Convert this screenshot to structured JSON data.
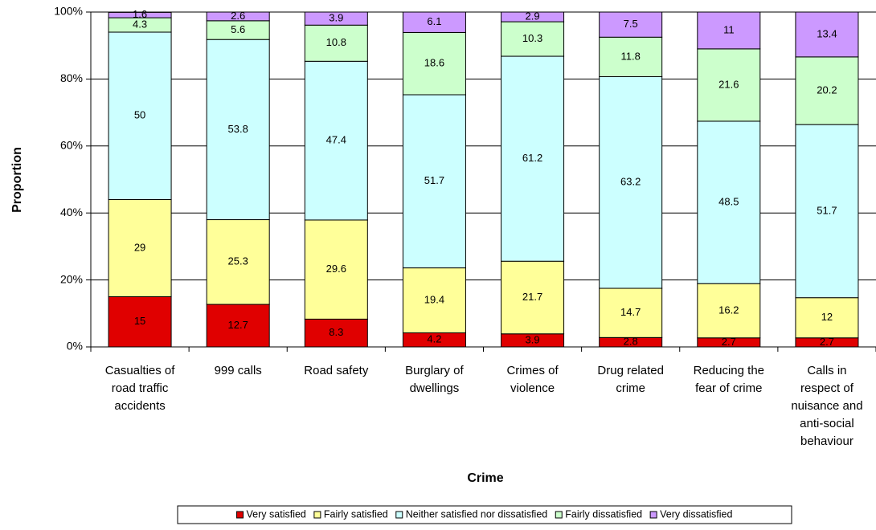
{
  "chart_data": {
    "type": "bar",
    "stacked": true,
    "percent_stacked": true,
    "xlabel": "Crime",
    "ylabel": "Proportion",
    "y_ticks": [
      "0%",
      "20%",
      "40%",
      "60%",
      "80%",
      "100%"
    ],
    "ylim": [
      0,
      100
    ],
    "grid": true,
    "legend_position": "bottom",
    "categories": [
      [
        "Casualties of",
        "road traffic",
        "accidents"
      ],
      [
        "999 calls"
      ],
      [
        "Road safety"
      ],
      [
        "Burglary of",
        "dwellings"
      ],
      [
        "Crimes of",
        "violence"
      ],
      [
        "Drug related",
        "crime"
      ],
      [
        "Reducing the",
        "fear of crime"
      ],
      [
        "Calls in",
        "respect of",
        "nuisance and",
        "anti-social",
        "behaviour"
      ]
    ],
    "series": [
      {
        "name": "Very satisfied",
        "color": "#e00000",
        "values": [
          15,
          12.7,
          8.3,
          4.2,
          3.9,
          2.8,
          2.7,
          2.7
        ]
      },
      {
        "name": "Fairly satisfied",
        "color": "#ffff99",
        "values": [
          29,
          25.3,
          29.6,
          19.4,
          21.7,
          14.7,
          16.2,
          12
        ]
      },
      {
        "name": "Neither satisfied nor dissatisfied",
        "color": "#ccffff",
        "values": [
          50,
          53.8,
          47.4,
          51.7,
          61.2,
          63.2,
          48.5,
          51.7
        ]
      },
      {
        "name": "Fairly dissatisfied",
        "color": "#ccffcc",
        "values": [
          4.3,
          5.6,
          10.8,
          18.6,
          10.3,
          11.8,
          21.6,
          20.2
        ]
      },
      {
        "name": "Very dissatisfied",
        "color": "#cc99ff",
        "values": [
          1.6,
          2.6,
          3.9,
          6.1,
          2.9,
          7.5,
          11,
          13.4
        ]
      }
    ]
  }
}
